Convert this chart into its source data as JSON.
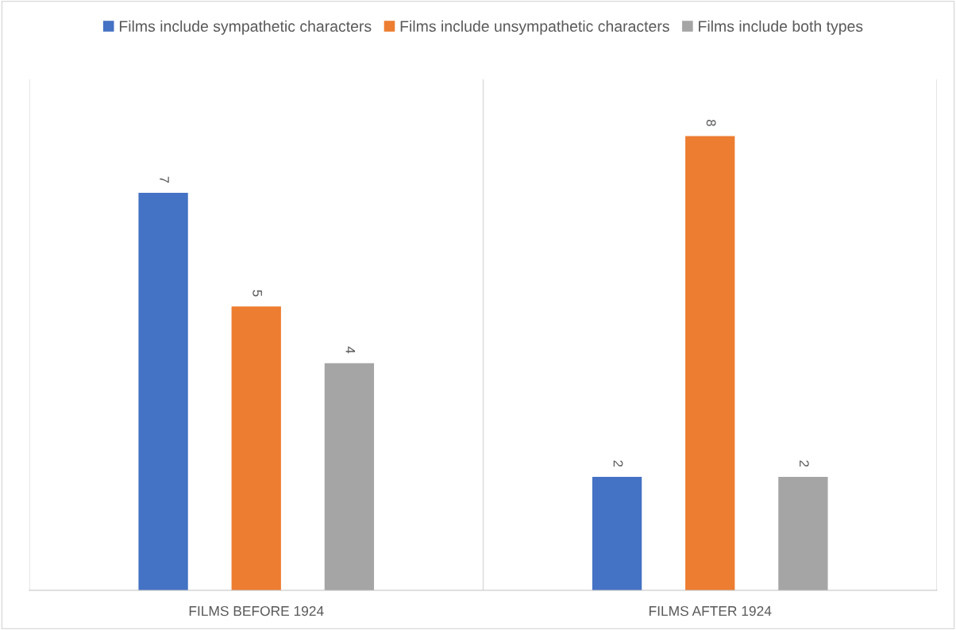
{
  "chart_data": {
    "type": "bar",
    "categories": [
      "FILMS BEFORE 1924",
      "FILMS AFTER 1924"
    ],
    "series": [
      {
        "name": "Films include sympathetic characters",
        "color": "#4472c4",
        "values": [
          7,
          2
        ]
      },
      {
        "name": "Films include unsympathetic characters",
        "color": "#ed7d31",
        "values": [
          5,
          8
        ]
      },
      {
        "name": "Films include both types",
        "color": "#a5a5a5",
        "values": [
          4,
          2
        ]
      }
    ],
    "ylim": [
      0,
      9
    ],
    "tick_labels": "x",
    "data_labels": true,
    "grid": "x",
    "legend": "top"
  }
}
